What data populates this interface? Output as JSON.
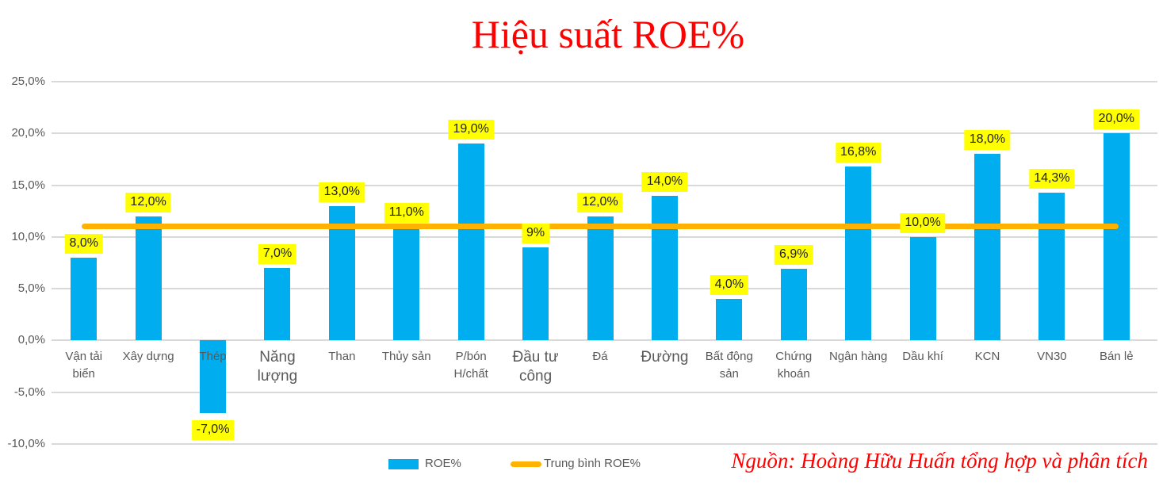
{
  "title": "Hiệu suất ROE%",
  "source": "Nguồn: Hoàng Hữu Huấn tổng hợp và phân tích",
  "colors": {
    "bar": "#00AEEF",
    "average_line": "#FFB300",
    "value_label_bg": "#FFFF00",
    "value_label_text": "#1f1f1f",
    "axis_text": "#595959",
    "gridline": "#D9D9D9",
    "title_text": "#FF0000",
    "source_text": "#FF0000"
  },
  "legend": [
    {
      "name": "ROE%",
      "swatch": "bar"
    },
    {
      "name": "Trung bình ROE%",
      "swatch": "line"
    }
  ],
  "chart_data": {
    "type": "bar",
    "title": "Hiệu suất ROE%",
    "categories": [
      "Vận tải biển",
      "Xây dựng",
      "Thép",
      "Năng lượng",
      "Than",
      "Thủy sản",
      "P/bón H/chất",
      "Đầu tư công",
      "Đá",
      "Đường",
      "Bất động sản",
      "Chứng khoán",
      "Ngân hàng",
      "Dầu khí",
      "KCN",
      "VN30",
      "Bán lẻ"
    ],
    "category_lines": [
      "Vận tải\nbiển",
      "Xây dựng",
      "Thép",
      "Năng\nlượng",
      "Than",
      "Thủy sản",
      "P/bón\nH/chất",
      "Đầu tư\ncông",
      "Đá",
      "Đường",
      "Bất động\nsản",
      "Chứng\nkhoán",
      "Ngân hàng",
      "Dầu khí",
      "KCN",
      "VN30",
      "Bán lẻ"
    ],
    "large_category_indexes": [
      3,
      7,
      9
    ],
    "values": [
      8.0,
      12.0,
      -7.0,
      7.0,
      13.0,
      11.0,
      19.0,
      9.0,
      12.0,
      14.0,
      4.0,
      6.9,
      16.8,
      10.0,
      18.0,
      14.3,
      20.0
    ],
    "value_labels": [
      "8,0%",
      "12,0%",
      "-7,0%",
      "7,0%",
      "13,0%",
      "11,0%",
      "19,0%",
      "9%",
      "12,0%",
      "14,0%",
      "4,0%",
      "6,9%",
      "16,8%",
      "10,0%",
      "18,0%",
      "14,3%",
      "20,0%"
    ],
    "average_line": {
      "label": "Trung bình ROE%",
      "value": 11.0
    },
    "ylim": [
      -10,
      25
    ],
    "yticks": [
      {
        "value": 25,
        "label": "25,0%"
      },
      {
        "value": 20,
        "label": "20,0%"
      },
      {
        "value": 15,
        "label": "15,0%"
      },
      {
        "value": 10,
        "label": "10,0%"
      },
      {
        "value": 5,
        "label": "5,0%"
      },
      {
        "value": 0,
        "label": "0,0%"
      },
      {
        "value": -5,
        "label": "-5,0%"
      },
      {
        "value": -10,
        "label": "-10,0%"
      }
    ],
    "grid": true,
    "legend_position": "bottom"
  }
}
